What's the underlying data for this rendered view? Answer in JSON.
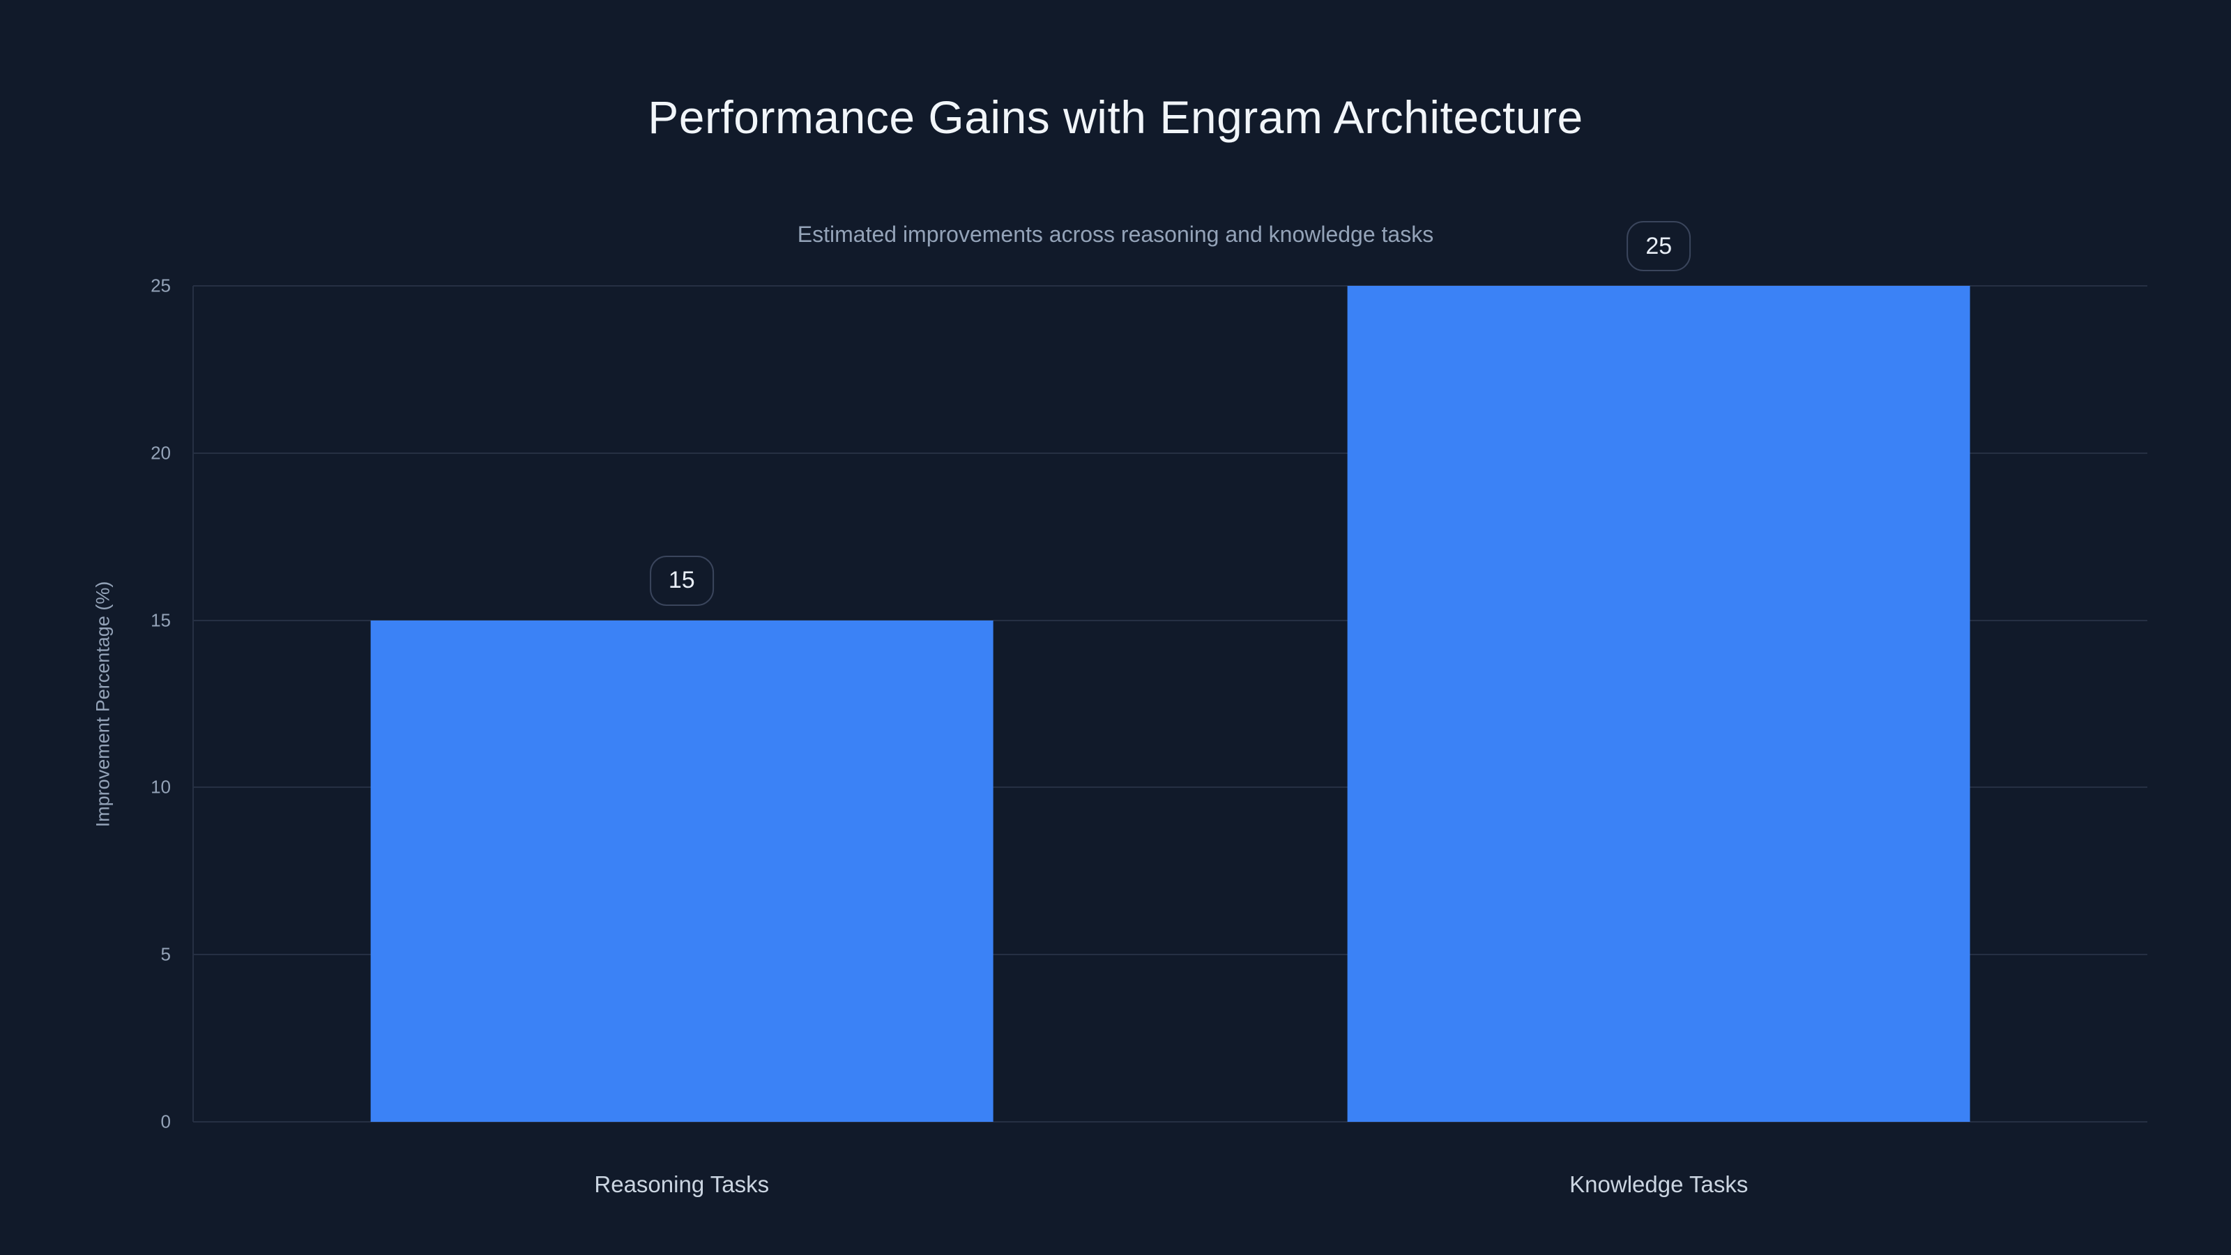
{
  "page": {
    "background": "#111a2a"
  },
  "chart_data": {
    "type": "bar",
    "title": "Performance Gains with Engram Architecture",
    "subtitle": "Estimated improvements across reasoning and knowledge tasks",
    "xlabel": "",
    "ylabel": "Improvement Percentage (%)",
    "categories": [
      "Reasoning Tasks",
      "Knowledge Tasks"
    ],
    "values": [
      15,
      25
    ],
    "data_labels": [
      "15",
      "25"
    ],
    "ylim": [
      0,
      25
    ],
    "yticks": [
      0,
      5,
      10,
      15,
      20,
      25
    ],
    "grid": true,
    "legend": false,
    "colors": {
      "background": "#111a2a",
      "title": "#f1f5f9",
      "subtitle": "#94a3b8",
      "axis_text": "#94a3b8",
      "category_text": "#cbd5e1",
      "gridline": "#263043",
      "badge_border": "#3a455c",
      "badge_text": "#e8eef6",
      "bar": "#3b82f6"
    }
  }
}
